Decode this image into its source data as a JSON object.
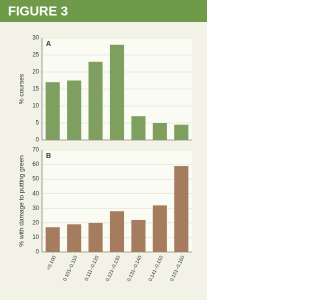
{
  "figure_label": "FIGURE 3",
  "chart_data": [
    {
      "type": "bar",
      "panel": "A",
      "ylabel": "% courses",
      "categories": [
        null,
        null,
        null,
        null,
        null,
        null,
        null
      ],
      "values": [
        17,
        17.5,
        23,
        28,
        7,
        5,
        4.5
      ],
      "color": "#7f9f61",
      "ylim": [
        0,
        30
      ],
      "yticks": [
        0,
        5,
        10,
        15,
        20,
        25,
        30
      ],
      "grid": true
    },
    {
      "type": "bar",
      "panel": "B",
      "ylabel": "% with damage to putting green",
      "categories": [
        "<0.100",
        "0.101–0.110",
        "0.111–0.120",
        "0.121–0.130",
        "0.131–0.140",
        "0.141–0.150",
        "0.151–0.160"
      ],
      "values": [
        17,
        19,
        20,
        28,
        22,
        32,
        59
      ],
      "color": "#a67c5e",
      "ylim": [
        0,
        70
      ],
      "yticks": [
        0,
        10,
        20,
        30,
        40,
        50,
        60,
        70
      ],
      "grid": true
    }
  ]
}
